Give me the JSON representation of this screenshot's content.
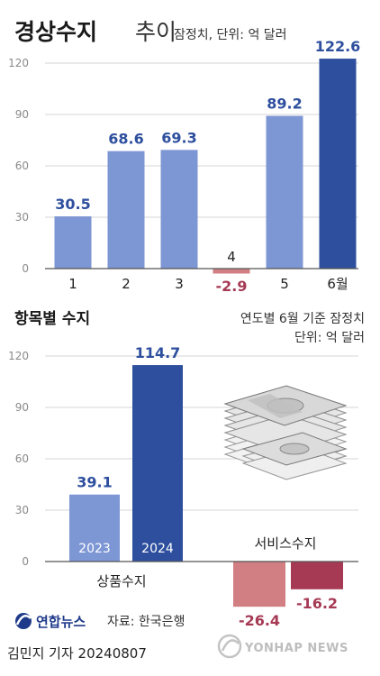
{
  "chart_data": [
    {
      "type": "bar",
      "title": "경상수지",
      "title_suffix": "추이",
      "subtitle": "잠정치, 단위: 억 달러",
      "categories": [
        "1",
        "2",
        "3",
        "4",
        "5",
        "6월"
      ],
      "values": [
        30.5,
        68.6,
        69.3,
        -2.9,
        89.2,
        122.6
      ],
      "value_labels": [
        "30.5",
        "68.6",
        "69.3",
        "-2.9",
        "89.2",
        "122.6"
      ],
      "ylim": [
        0,
        120
      ],
      "yticks": [
        "0",
        "30",
        "60",
        "90",
        "120"
      ],
      "grid": true
    },
    {
      "type": "bar",
      "title": "항목별 수지",
      "note_line1": "연도별 6월 기준 잠정치",
      "note_line2": "단위: 억 달러",
      "groups": [
        {
          "name": "상품수지",
          "categories": [
            "2023",
            "2024"
          ],
          "values": [
            39.1,
            114.7
          ],
          "value_labels": [
            "39.1",
            "114.7"
          ]
        },
        {
          "name": "서비스수지",
          "categories": [
            "2023",
            "2024"
          ],
          "values": [
            -26.4,
            -16.2
          ],
          "value_labels": [
            "-26.4",
            "-16.2"
          ]
        }
      ],
      "ylim": [
        0,
        120
      ],
      "yticks": [
        "0",
        "30",
        "60",
        "90",
        "120"
      ],
      "grid": true
    }
  ],
  "footer": {
    "logo_text": "연합뉴스",
    "source": "자료: 한국은행",
    "byline": "김민지 기자  20240807",
    "watermark": "YONHAP NEWS"
  },
  "colors": {
    "bar_light": "#7d96d4",
    "bar_dark": "#2e4f9e",
    "neg_light": "#d17f82",
    "neg_dark": "#a63a55",
    "value_pos": "#2e4f9e",
    "value_neg": "#a63a55",
    "grid": "#d4d4d4",
    "axis": "#555555"
  },
  "icons": {
    "money": "money-stack-icon",
    "logo": "yonhap-logo-icon",
    "watermark": "yonhap-watermark-icon"
  }
}
